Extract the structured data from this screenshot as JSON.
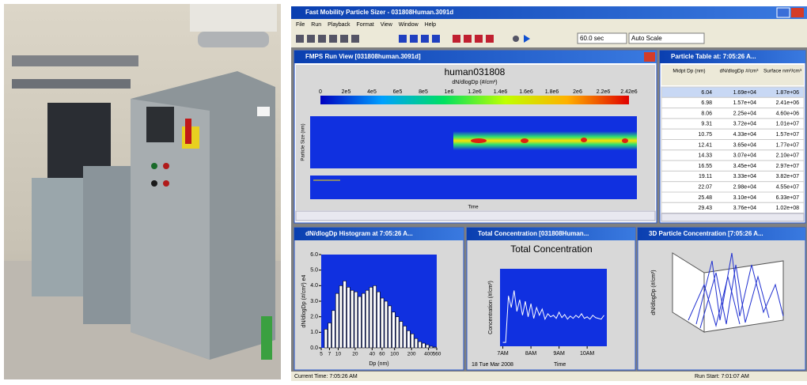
{
  "window": {
    "title": "Fast Mobility Particle Sizer - 031808Human.3091d",
    "menu": [
      "File",
      "Run",
      "Playback",
      "Format",
      "View",
      "Window",
      "Help"
    ],
    "interval": "60.0 sec",
    "scale": "Auto Scale",
    "status_left": "Current Time: 7:05:26 AM",
    "status_right": "Run Start: 7:01:07 AM"
  },
  "run_view": {
    "title": "FMPS Run View [031808human.3091d]",
    "chart_title": "human031808",
    "colorbar_label": "dN/dlogDp (#/cm³)",
    "colorbar_ticks": [
      "0",
      "2e5",
      "4e5",
      "6e5",
      "8e5",
      "1e6",
      "1.2e6",
      "1.4e6",
      "1.6e6",
      "1.8e6",
      "2e6",
      "2.2e6",
      "2.42e6"
    ],
    "y_label": "Particle Size (nm)",
    "x_label": "Time"
  },
  "particle_table": {
    "title": "Particle Table at: 7:05:26 A...",
    "headers": [
      "Midpt Dp (nm)",
      "dN/dlogDp #/cm³",
      "Surface nm²/cm³"
    ],
    "rows": [
      [
        "6.04",
        "1.69e+04",
        "1.87e+06"
      ],
      [
        "6.98",
        "1.57e+04",
        "2.41e+06"
      ],
      [
        "8.06",
        "2.25e+04",
        "4.60e+06"
      ],
      [
        "9.31",
        "3.72e+04",
        "1.01e+07"
      ],
      [
        "10.75",
        "4.33e+04",
        "1.57e+07"
      ],
      [
        "12.41",
        "3.65e+04",
        "1.77e+07"
      ],
      [
        "14.33",
        "3.07e+04",
        "2.10e+07"
      ],
      [
        "16.55",
        "3.45e+04",
        "2.97e+07"
      ],
      [
        "19.11",
        "3.33e+04",
        "3.82e+07"
      ],
      [
        "22.07",
        "2.98e+04",
        "4.55e+07"
      ],
      [
        "25.48",
        "3.10e+04",
        "6.33e+07"
      ],
      [
        "29.43",
        "3.76e+04",
        "1.02e+08"
      ]
    ]
  },
  "panels": {
    "histogram": "dN/dlogDp Histogram at 7:05:26 A...",
    "total": "Total Concentration [031808Human...",
    "three_d": "3D Particle Concentration [7:05:26 A...",
    "three_d_label": "dN/dlogDp (#/cm³)"
  },
  "chart_data": [
    {
      "type": "histogram",
      "x_label": "Dp (nm)",
      "y_label": "dN/dlogDp (#/cm³) e4",
      "log_x": true,
      "bins": [
        5.6,
        6.53,
        7.61,
        8.88,
        10.35,
        12.07,
        14.07,
        16.41,
        19.13,
        22.31,
        26.01,
        30.33,
        35.37,
        41.24,
        48.09,
        56.07,
        65.38,
        76.24,
        88.9,
        103.7,
        120.9,
        141,
        164.4,
        191.7,
        223.5,
        260.6,
        303.9,
        354.4,
        413.2,
        481.9,
        560
      ],
      "values": [
        1.2,
        1.6,
        2.4,
        3.5,
        4.0,
        4.3,
        3.9,
        3.7,
        3.6,
        3.3,
        3.5,
        3.7,
        3.9,
        4.0,
        3.6,
        3.2,
        3.0,
        2.7,
        2.3,
        2.0,
        1.7,
        1.4,
        1.1,
        0.9,
        0.6,
        0.4,
        0.3,
        0.2,
        0.1,
        0.05
      ],
      "color": "#ffffff",
      "xlim": [
        5,
        560
      ],
      "xticks": [
        5,
        7,
        10,
        20,
        40,
        60,
        100,
        200,
        400,
        560
      ],
      "ylim": [
        0,
        6
      ],
      "yticks": [
        {
          "value": 0,
          "label": "0.0"
        },
        {
          "value": 1,
          "label": "1.0"
        },
        {
          "value": 2,
          "label": "2.0"
        },
        {
          "value": 3,
          "label": "3.0"
        },
        {
          "value": 4,
          "label": "4.0"
        },
        {
          "value": 5,
          "label": "5.0"
        },
        {
          "value": 6,
          "label": "6.0"
        }
      ]
    },
    {
      "type": "line",
      "title": "Total Concentration",
      "y_label": "Concentration (#/cm³)",
      "x_label": "Time",
      "date": "18 Tue Mar 2008",
      "color": "#ffffff",
      "x": [
        7.0,
        7.1,
        7.2,
        7.3,
        7.4,
        7.5,
        7.6,
        7.7,
        7.8,
        7.9,
        8.0,
        8.1,
        8.2,
        8.3,
        8.4,
        8.5,
        8.6,
        8.7,
        8.8,
        8.9,
        9.0,
        9.1,
        9.2,
        9.3,
        9.4,
        9.5,
        9.6,
        9.7,
        9.8,
        9.9,
        10.0,
        10.1,
        10.2,
        10.3,
        10.4,
        10.5,
        10.6
      ],
      "values": [
        5,
        5,
        65,
        50,
        72,
        45,
        60,
        40,
        58,
        38,
        55,
        36,
        50,
        40,
        48,
        35,
        42,
        38,
        40,
        36,
        44,
        37,
        41,
        35,
        39,
        36,
        40,
        37,
        42,
        36,
        38,
        35,
        40,
        37,
        36,
        35,
        40
      ],
      "xlim": [
        6.9,
        10.7
      ],
      "xticks": [
        {
          "value": 7,
          "label": "7AM"
        },
        {
          "value": 8,
          "label": "8AM"
        },
        {
          "value": 9,
          "label": "9AM"
        },
        {
          "value": 10,
          "label": "10AM"
        }
      ],
      "ylim": [
        0,
        100
      ]
    }
  ]
}
